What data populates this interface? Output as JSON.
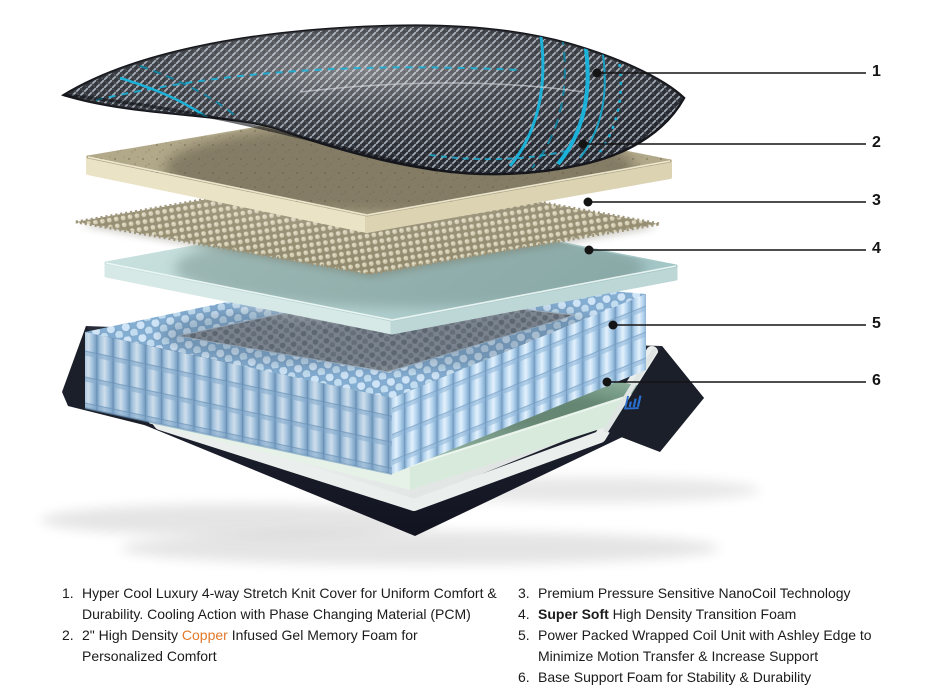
{
  "figure": {
    "description": "Exploded layer diagram of a mattress with six numbered callouts",
    "callouts": [
      {
        "label": "1"
      },
      {
        "label": "2"
      },
      {
        "label": "3"
      },
      {
        "label": "4"
      },
      {
        "label": "5"
      },
      {
        "label": "6"
      }
    ]
  },
  "legend": {
    "left": [
      {
        "num": "1.",
        "segments": [
          {
            "text": "Hyper Cool Luxury 4-way Stretch Knit Cover for Uniform Comfort &"
          },
          {
            "br": true
          },
          {
            "text": "Durability. Cooling Action with Phase Changing Material (PCM)"
          }
        ]
      },
      {
        "num": "2.",
        "segments": [
          {
            "text": "2\" High Density "
          },
          {
            "text": "Copper",
            "color": "copper"
          },
          {
            "text": " Infused Gel Memory Foam for"
          },
          {
            "br": true
          },
          {
            "text": "Personalized Comfort"
          }
        ]
      }
    ],
    "right": [
      {
        "num": "3.",
        "segments": [
          {
            "text": "Premium Pressure Sensitive NanoCoil Technology"
          }
        ]
      },
      {
        "num": "4.",
        "segments": [
          {
            "text": "Super Soft",
            "bold": true
          },
          {
            "text": " High Density Transition Foam"
          }
        ]
      },
      {
        "num": "5.",
        "segments": [
          {
            "text": "Power Packed Wrapped Coil Unit with Ashley Edge to"
          },
          {
            "br": true
          },
          {
            "text": "Minimize Motion Transfer & Increase Support"
          }
        ]
      },
      {
        "num": "6.",
        "segments": [
          {
            "text": "Base Support Foam for Stability & Durability"
          }
        ]
      }
    ]
  },
  "colors": {
    "copper": "#E2792A",
    "accent_cyan": "#1BB1D8",
    "logo_blue": "#2A6FD0",
    "text": "#1B1B1B",
    "callout_line": "#141414"
  }
}
